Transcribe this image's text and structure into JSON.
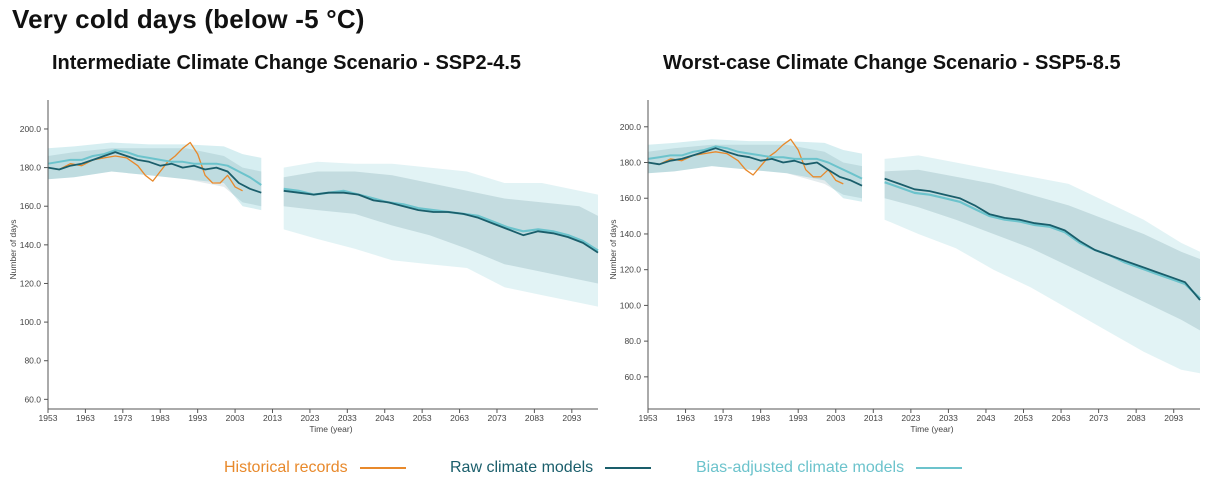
{
  "main_title": "Very cold days (below -5 °C)",
  "colors": {
    "historical": "#e8892b",
    "raw": "#1a5e6b",
    "bias": "#6cc3cc",
    "axis": "#555555"
  },
  "legend": {
    "historical": "Historical records",
    "raw": "Raw climate models",
    "bias": "Bias-adjusted climate models"
  },
  "chart_data": [
    {
      "type": "line",
      "title": "Intermediate Climate Change Scenario - SSP2-4.5",
      "xlabel": "Time (year)",
      "ylabel": "Number of days",
      "xlim": [
        1953,
        2100
      ],
      "ylim": [
        55,
        215
      ],
      "x_ticks": [
        "1953",
        "1963",
        "1973",
        "1983",
        "1993",
        "2003",
        "2013",
        "2023",
        "2033",
        "2043",
        "2053",
        "2063",
        "2073",
        "2083",
        "2093"
      ],
      "y_ticks": [
        "60.0",
        "80.0",
        "100.0",
        "120.0",
        "140.0",
        "160.0",
        "180.0",
        "200.0"
      ],
      "historical": {
        "x": [
          1953,
          1956,
          1959,
          1962,
          1965,
          1968,
          1971,
          1974,
          1977,
          1979,
          1981,
          1983,
          1985,
          1987,
          1989,
          1991,
          1993,
          1995,
          1997,
          1999,
          2001,
          2003,
          2005
        ],
        "y": [
          180,
          179,
          182,
          181,
          184,
          185,
          186,
          185,
          181,
          176,
          173,
          178,
          183,
          186,
          190,
          193,
          187,
          176,
          172,
          172,
          176,
          170,
          168
        ]
      },
      "raw": {
        "x": [
          1953,
          1956,
          1959,
          1962,
          1965,
          1968,
          1971,
          1974,
          1977,
          1980,
          1983,
          1986,
          1989,
          1992,
          1995,
          1998,
          2001,
          2004,
          2007,
          2010
        ],
        "y": [
          180,
          179,
          181,
          182,
          184,
          186,
          188,
          186,
          184,
          183,
          181,
          182,
          180,
          181,
          179,
          180,
          178,
          172,
          169,
          167
        ]
      },
      "bias": {
        "x": [
          1953,
          1956,
          1959,
          1962,
          1965,
          1968,
          1971,
          1974,
          1977,
          1980,
          1983,
          1986,
          1989,
          1992,
          1995,
          1998,
          2001,
          2004,
          2007,
          2010
        ],
        "y": [
          182,
          183,
          184,
          184,
          186,
          187,
          189,
          188,
          186,
          185,
          184,
          183,
          183,
          182,
          182,
          182,
          181,
          178,
          175,
          171
        ]
      },
      "bias_band": {
        "x": [
          1953,
          1960,
          1970,
          1980,
          1990,
          2000,
          2005,
          2010
        ],
        "lower": [
          174,
          175,
          178,
          176,
          174,
          172,
          160,
          158
        ],
        "upper": [
          190,
          191,
          193,
          192,
          192,
          191,
          187,
          185
        ]
      },
      "raw_band": {
        "x": [
          1953,
          1960,
          1970,
          1980,
          1990,
          2000,
          2005,
          2010
        ],
        "lower": [
          174,
          175,
          178,
          176,
          174,
          170,
          162,
          160
        ],
        "upper": [
          186,
          188,
          190,
          190,
          190,
          186,
          180,
          178
        ]
      },
      "future_raw": {
        "x": [
          2016,
          2020,
          2024,
          2028,
          2032,
          2036,
          2040,
          2044,
          2048,
          2052,
          2056,
          2060,
          2064,
          2068,
          2072,
          2076,
          2080,
          2084,
          2088,
          2092,
          2096,
          2100
        ],
        "y": [
          168,
          167,
          166,
          167,
          167,
          166,
          163,
          162,
          160,
          158,
          157,
          157,
          156,
          154,
          151,
          148,
          145,
          147,
          146,
          144,
          141,
          136
        ]
      },
      "future_bias": {
        "x": [
          2016,
          2020,
          2024,
          2028,
          2032,
          2036,
          2040,
          2044,
          2048,
          2052,
          2056,
          2060,
          2064,
          2068,
          2072,
          2076,
          2080,
          2084,
          2088,
          2092,
          2096,
          2100
        ],
        "y": [
          169,
          168,
          166,
          167,
          168,
          166,
          164,
          162,
          161,
          159,
          158,
          157,
          156,
          155,
          152,
          149,
          147,
          148,
          147,
          145,
          142,
          137
        ]
      },
      "future_bias_band": {
        "x": [
          2016,
          2025,
          2035,
          2045,
          2055,
          2065,
          2075,
          2085,
          2095,
          2100
        ],
        "lower": [
          148,
          143,
          138,
          132,
          130,
          128,
          118,
          114,
          110,
          108
        ],
        "upper": [
          180,
          183,
          182,
          182,
          180,
          178,
          172,
          172,
          168,
          166
        ]
      },
      "future_raw_band": {
        "x": [
          2016,
          2025,
          2035,
          2045,
          2055,
          2065,
          2075,
          2085,
          2095,
          2100
        ],
        "lower": [
          160,
          158,
          156,
          150,
          145,
          138,
          130,
          126,
          122,
          120
        ],
        "upper": [
          175,
          178,
          178,
          176,
          172,
          168,
          164,
          162,
          160,
          155
        ]
      }
    },
    {
      "type": "line",
      "title": "Worst-case Climate Change Scenario - SSP5-8.5",
      "xlabel": "Time (year)",
      "ylabel": "Number of days",
      "xlim": [
        1953,
        2100
      ],
      "ylim": [
        42,
        215
      ],
      "x_ticks": [
        "1953",
        "1963",
        "1973",
        "1983",
        "1993",
        "2003",
        "2013",
        "2023",
        "2033",
        "2043",
        "2053",
        "2063",
        "2073",
        "2083",
        "2093"
      ],
      "y_ticks": [
        "60.0",
        "80.0",
        "100.0",
        "120.0",
        "140.0",
        "160.0",
        "180.0",
        "200.0"
      ],
      "historical": {
        "x": [
          1953,
          1956,
          1959,
          1962,
          1965,
          1968,
          1971,
          1974,
          1977,
          1979,
          1981,
          1983,
          1985,
          1987,
          1989,
          1991,
          1993,
          1995,
          1997,
          1999,
          2001,
          2003,
          2005
        ],
        "y": [
          180,
          179,
          182,
          181,
          184,
          185,
          186,
          185,
          181,
          176,
          173,
          178,
          183,
          186,
          190,
          193,
          187,
          176,
          172,
          172,
          176,
          170,
          168
        ]
      },
      "raw": {
        "x": [
          1953,
          1956,
          1959,
          1962,
          1965,
          1968,
          1971,
          1974,
          1977,
          1980,
          1983,
          1986,
          1989,
          1992,
          1995,
          1998,
          2001,
          2004,
          2007,
          2010
        ],
        "y": [
          180,
          179,
          181,
          182,
          184,
          186,
          188,
          186,
          184,
          183,
          181,
          182,
          180,
          181,
          179,
          180,
          176,
          172,
          170,
          167
        ]
      },
      "bias": {
        "x": [
          1953,
          1956,
          1959,
          1962,
          1965,
          1968,
          1971,
          1974,
          1977,
          1980,
          1983,
          1986,
          1989,
          1992,
          1995,
          1998,
          2001,
          2004,
          2007,
          2010
        ],
        "y": [
          182,
          183,
          184,
          184,
          186,
          187,
          189,
          188,
          186,
          185,
          184,
          183,
          183,
          182,
          182,
          182,
          180,
          177,
          174,
          171
        ]
      },
      "bias_band": {
        "x": [
          1953,
          1960,
          1970,
          1980,
          1990,
          2000,
          2005,
          2010
        ],
        "lower": [
          174,
          175,
          178,
          176,
          174,
          170,
          160,
          158
        ],
        "upper": [
          190,
          191,
          193,
          192,
          192,
          191,
          187,
          185
        ]
      },
      "raw_band": {
        "x": [
          1953,
          1960,
          1970,
          1980,
          1990,
          2000,
          2005,
          2010
        ],
        "lower": [
          174,
          175,
          178,
          176,
          174,
          168,
          162,
          160
        ],
        "upper": [
          186,
          188,
          190,
          190,
          190,
          186,
          180,
          178
        ]
      },
      "future_raw": {
        "x": [
          2016,
          2020,
          2024,
          2028,
          2032,
          2036,
          2040,
          2044,
          2048,
          2052,
          2056,
          2060,
          2064,
          2068,
          2072,
          2076,
          2080,
          2084,
          2088,
          2092,
          2096,
          2100
        ],
        "y": [
          171,
          168,
          165,
          164,
          162,
          160,
          156,
          151,
          149,
          148,
          146,
          145,
          142,
          136,
          131,
          128,
          125,
          122,
          119,
          116,
          113,
          103
        ]
      },
      "future_bias": {
        "x": [
          2016,
          2020,
          2024,
          2028,
          2032,
          2036,
          2040,
          2044,
          2048,
          2052,
          2056,
          2060,
          2064,
          2068,
          2072,
          2076,
          2080,
          2084,
          2088,
          2092,
          2096,
          2100
        ],
        "y": [
          169,
          166,
          163,
          162,
          160,
          158,
          154,
          150,
          148,
          147,
          145,
          144,
          141,
          135,
          131,
          128,
          124,
          121,
          118,
          115,
          112,
          104
        ]
      },
      "future_bias_band": {
        "x": [
          2016,
          2025,
          2035,
          2045,
          2055,
          2065,
          2075,
          2085,
          2095,
          2100
        ],
        "lower": [
          148,
          140,
          132,
          120,
          110,
          98,
          86,
          74,
          64,
          62
        ],
        "upper": [
          182,
          184,
          180,
          176,
          172,
          168,
          158,
          148,
          135,
          130
        ]
      },
      "future_raw_band": {
        "x": [
          2016,
          2025,
          2035,
          2045,
          2055,
          2065,
          2075,
          2085,
          2095,
          2100
        ],
        "lower": [
          160,
          155,
          148,
          140,
          132,
          122,
          112,
          102,
          92,
          86
        ],
        "upper": [
          175,
          176,
          172,
          168,
          162,
          156,
          148,
          140,
          130,
          126
        ]
      }
    }
  ]
}
